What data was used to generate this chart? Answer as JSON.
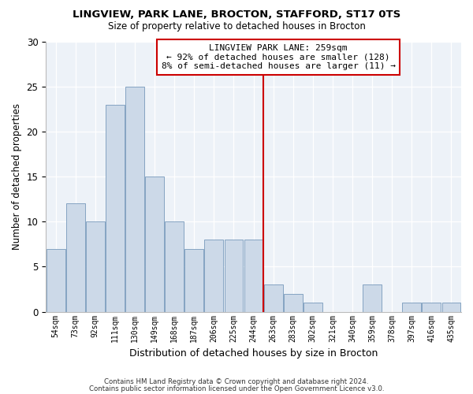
{
  "title1": "LINGVIEW, PARK LANE, BROCTON, STAFFORD, ST17 0TS",
  "title2": "Size of property relative to detached houses in Brocton",
  "xlabel": "Distribution of detached houses by size in Brocton",
  "ylabel": "Number of detached properties",
  "bar_labels": [
    "54sqm",
    "73sqm",
    "92sqm",
    "111sqm",
    "130sqm",
    "149sqm",
    "168sqm",
    "187sqm",
    "206sqm",
    "225sqm",
    "244sqm",
    "263sqm",
    "283sqm",
    "302sqm",
    "321sqm",
    "340sqm",
    "359sqm",
    "378sqm",
    "397sqm",
    "416sqm",
    "435sqm"
  ],
  "bar_values": [
    7,
    12,
    10,
    23,
    25,
    15,
    10,
    7,
    8,
    8,
    8,
    3,
    2,
    1,
    0,
    0,
    3,
    0,
    1,
    1,
    1
  ],
  "bar_color": "#ccd9e8",
  "bar_edge_color": "#7799bb",
  "vline_x": 11.0,
  "vline_color": "#cc0000",
  "annotation_title": "LINGVIEW PARK LANE: 259sqm",
  "annotation_line1": "← 92% of detached houses are smaller (128)",
  "annotation_line2": "8% of semi-detached houses are larger (11) →",
  "annotation_box_color": "#ffffff",
  "annotation_box_edge": "#cc0000",
  "ylim": [
    0,
    30
  ],
  "yticks": [
    0,
    5,
    10,
    15,
    20,
    25,
    30
  ],
  "footnote1": "Contains HM Land Registry data © Crown copyright and database right 2024.",
  "footnote2": "Contains public sector information licensed under the Open Government Licence v3.0.",
  "bg_color": "#edf2f8"
}
